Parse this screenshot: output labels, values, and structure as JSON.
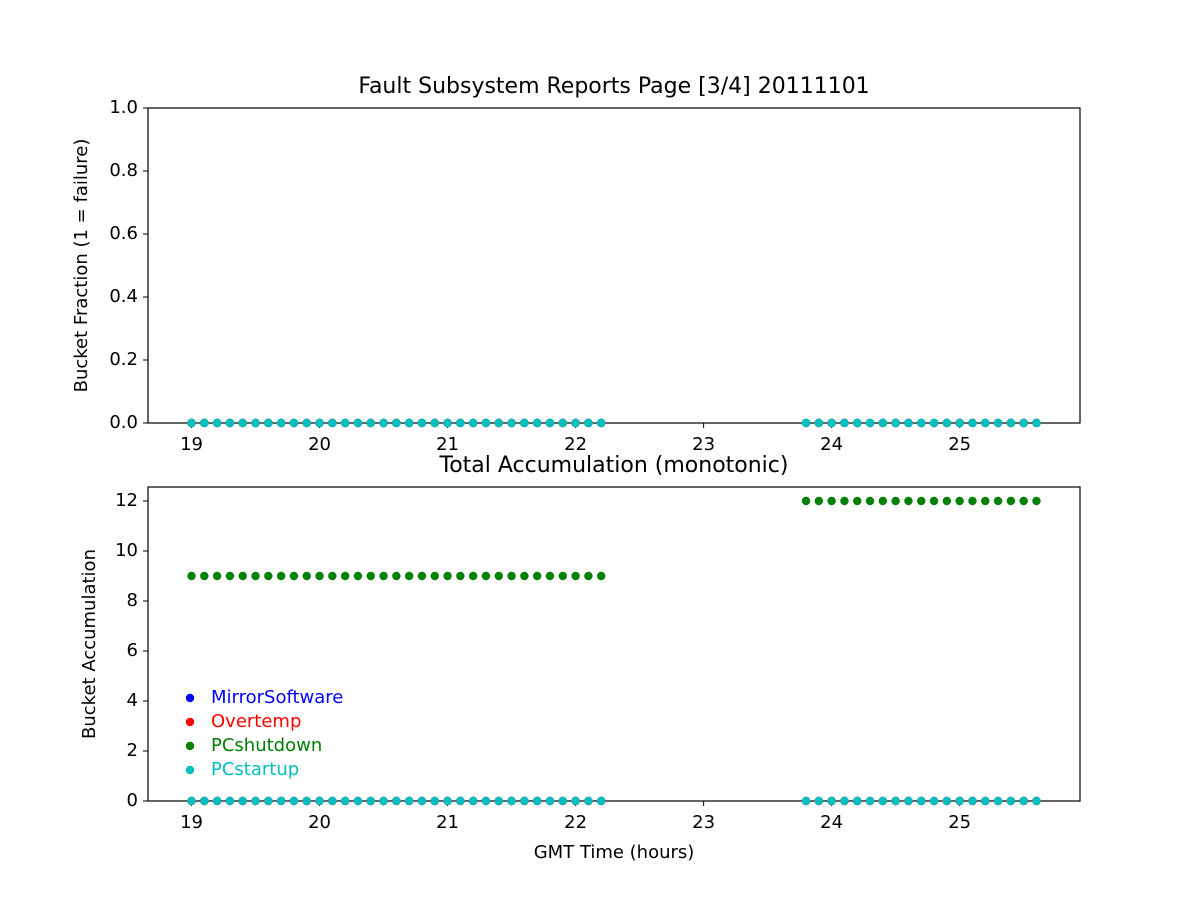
{
  "chart_data": [
    {
      "type": "scatter",
      "title": "Fault Subsystem Reports Page [3/4] 20111101",
      "ylabel": "Bucket Fraction (1 = failure)",
      "x": [
        19,
        19.1,
        19.2,
        19.3,
        19.4,
        19.5,
        19.6,
        19.7,
        19.8,
        19.9,
        20,
        20.1,
        20.2,
        20.3,
        20.4,
        20.5,
        20.6,
        20.7,
        20.8,
        20.9,
        21,
        21.1,
        21.2,
        21.3,
        21.4,
        21.5,
        21.6,
        21.7,
        21.8,
        21.9,
        22,
        22.1,
        22.2,
        23.8,
        23.9,
        24,
        24.1,
        24.2,
        24.3,
        24.4,
        24.5,
        24.6,
        24.7,
        24.8,
        24.9,
        25,
        25.1,
        25.2,
        25.3,
        25.4,
        25.5,
        25.6
      ],
      "series": [
        {
          "name": "MirrorSoftware",
          "color": "#0000ff",
          "values": [
            0,
            0,
            0,
            0,
            0,
            0,
            0,
            0,
            0,
            0,
            0,
            0,
            0,
            0,
            0,
            0,
            0,
            0,
            0,
            0,
            0,
            0,
            0,
            0,
            0,
            0,
            0,
            0,
            0,
            0,
            0,
            0,
            0,
            0,
            0,
            0,
            0,
            0,
            0,
            0,
            0,
            0,
            0,
            0,
            0,
            0,
            0,
            0,
            0,
            0,
            0,
            0
          ]
        },
        {
          "name": "Overtemp",
          "color": "#ff0000",
          "values": [
            0,
            0,
            0,
            0,
            0,
            0,
            0,
            0,
            0,
            0,
            0,
            0,
            0,
            0,
            0,
            0,
            0,
            0,
            0,
            0,
            0,
            0,
            0,
            0,
            0,
            0,
            0,
            0,
            0,
            0,
            0,
            0,
            0,
            0,
            0,
            0,
            0,
            0,
            0,
            0,
            0,
            0,
            0,
            0,
            0,
            0,
            0,
            0,
            0,
            0,
            0,
            0
          ]
        },
        {
          "name": "PCshutdown",
          "color": "#008000",
          "values": [
            0,
            0,
            0,
            0,
            0,
            0,
            0,
            0,
            0,
            0,
            0,
            0,
            0,
            0,
            0,
            0,
            0,
            0,
            0,
            0,
            0,
            0,
            0,
            0,
            0,
            0,
            0,
            0,
            0,
            0,
            0,
            0,
            0,
            0,
            0,
            0,
            0,
            0,
            0,
            0,
            0,
            0,
            0,
            0,
            0,
            0,
            0,
            0,
            0,
            0,
            0,
            0
          ]
        },
        {
          "name": "PCstartup",
          "color": "#00bfbf",
          "values": [
            0,
            0,
            0,
            0,
            0,
            0,
            0,
            0,
            0,
            0,
            0,
            0,
            0,
            0,
            0,
            0,
            0,
            0,
            0,
            0,
            0,
            0,
            0,
            0,
            0,
            0,
            0,
            0,
            0,
            0,
            0,
            0,
            0,
            0,
            0,
            0,
            0,
            0,
            0,
            0,
            0,
            0,
            0,
            0,
            0,
            0,
            0,
            0,
            0,
            0,
            0,
            0
          ]
        }
      ],
      "xlim": [
        18.66,
        25.94
      ],
      "ylim": [
        0,
        1
      ],
      "xticks": [
        19,
        20,
        21,
        22,
        23,
        24,
        25
      ],
      "yticks": [
        {
          "value": 0,
          "label": "0.0"
        },
        {
          "value": 0.2,
          "label": "0.2"
        },
        {
          "value": 0.4,
          "label": "0.4"
        },
        {
          "value": 0.6,
          "label": "0.6"
        },
        {
          "value": 0.8,
          "label": "0.8"
        },
        {
          "value": 1,
          "label": "1.0"
        }
      ]
    },
    {
      "type": "scatter",
      "title": "Total Accumulation (monotonic)",
      "ylabel": "Bucket Accumulation",
      "xlabel": "GMT Time (hours)",
      "x": [
        19,
        19.1,
        19.2,
        19.3,
        19.4,
        19.5,
        19.6,
        19.7,
        19.8,
        19.9,
        20,
        20.1,
        20.2,
        20.3,
        20.4,
        20.5,
        20.6,
        20.7,
        20.8,
        20.9,
        21,
        21.1,
        21.2,
        21.3,
        21.4,
        21.5,
        21.6,
        21.7,
        21.8,
        21.9,
        22,
        22.1,
        22.2,
        23.8,
        23.9,
        24,
        24.1,
        24.2,
        24.3,
        24.4,
        24.5,
        24.6,
        24.7,
        24.8,
        24.9,
        25,
        25.1,
        25.2,
        25.3,
        25.4,
        25.5,
        25.6
      ],
      "series": [
        {
          "name": "MirrorSoftware",
          "color": "#0000ff",
          "values": [
            0,
            0,
            0,
            0,
            0,
            0,
            0,
            0,
            0,
            0,
            0,
            0,
            0,
            0,
            0,
            0,
            0,
            0,
            0,
            0,
            0,
            0,
            0,
            0,
            0,
            0,
            0,
            0,
            0,
            0,
            0,
            0,
            0,
            0,
            0,
            0,
            0,
            0,
            0,
            0,
            0,
            0,
            0,
            0,
            0,
            0,
            0,
            0,
            0,
            0,
            0,
            0
          ]
        },
        {
          "name": "Overtemp",
          "color": "#ff0000",
          "values": [
            0,
            0,
            0,
            0,
            0,
            0,
            0,
            0,
            0,
            0,
            0,
            0,
            0,
            0,
            0,
            0,
            0,
            0,
            0,
            0,
            0,
            0,
            0,
            0,
            0,
            0,
            0,
            0,
            0,
            0,
            0,
            0,
            0,
            0,
            0,
            0,
            0,
            0,
            0,
            0,
            0,
            0,
            0,
            0,
            0,
            0,
            0,
            0,
            0,
            0,
            0,
            0
          ]
        },
        {
          "name": "PCshutdown",
          "color": "#008000",
          "values": [
            9,
            9,
            9,
            9,
            9,
            9,
            9,
            9,
            9,
            9,
            9,
            9,
            9,
            9,
            9,
            9,
            9,
            9,
            9,
            9,
            9,
            9,
            9,
            9,
            9,
            9,
            9,
            9,
            9,
            9,
            9,
            9,
            9,
            12,
            12,
            12,
            12,
            12,
            12,
            12,
            12,
            12,
            12,
            12,
            12,
            12,
            12,
            12,
            12,
            12,
            12,
            12
          ]
        },
        {
          "name": "PCstartup",
          "color": "#00bfbf",
          "values": [
            0,
            0,
            0,
            0,
            0,
            0,
            0,
            0,
            0,
            0,
            0,
            0,
            0,
            0,
            0,
            0,
            0,
            0,
            0,
            0,
            0,
            0,
            0,
            0,
            0,
            0,
            0,
            0,
            0,
            0,
            0,
            0,
            0,
            0,
            0,
            0,
            0,
            0,
            0,
            0,
            0,
            0,
            0,
            0,
            0,
            0,
            0,
            0,
            0,
            0,
            0,
            0
          ]
        }
      ],
      "xlim": [
        18.66,
        25.94
      ],
      "ylim": [
        0,
        12.56
      ],
      "xticks": [
        19,
        20,
        21,
        22,
        23,
        24,
        25
      ],
      "yticks": [
        0,
        2,
        4,
        6,
        8,
        10,
        12
      ],
      "legend": "lower left"
    }
  ]
}
